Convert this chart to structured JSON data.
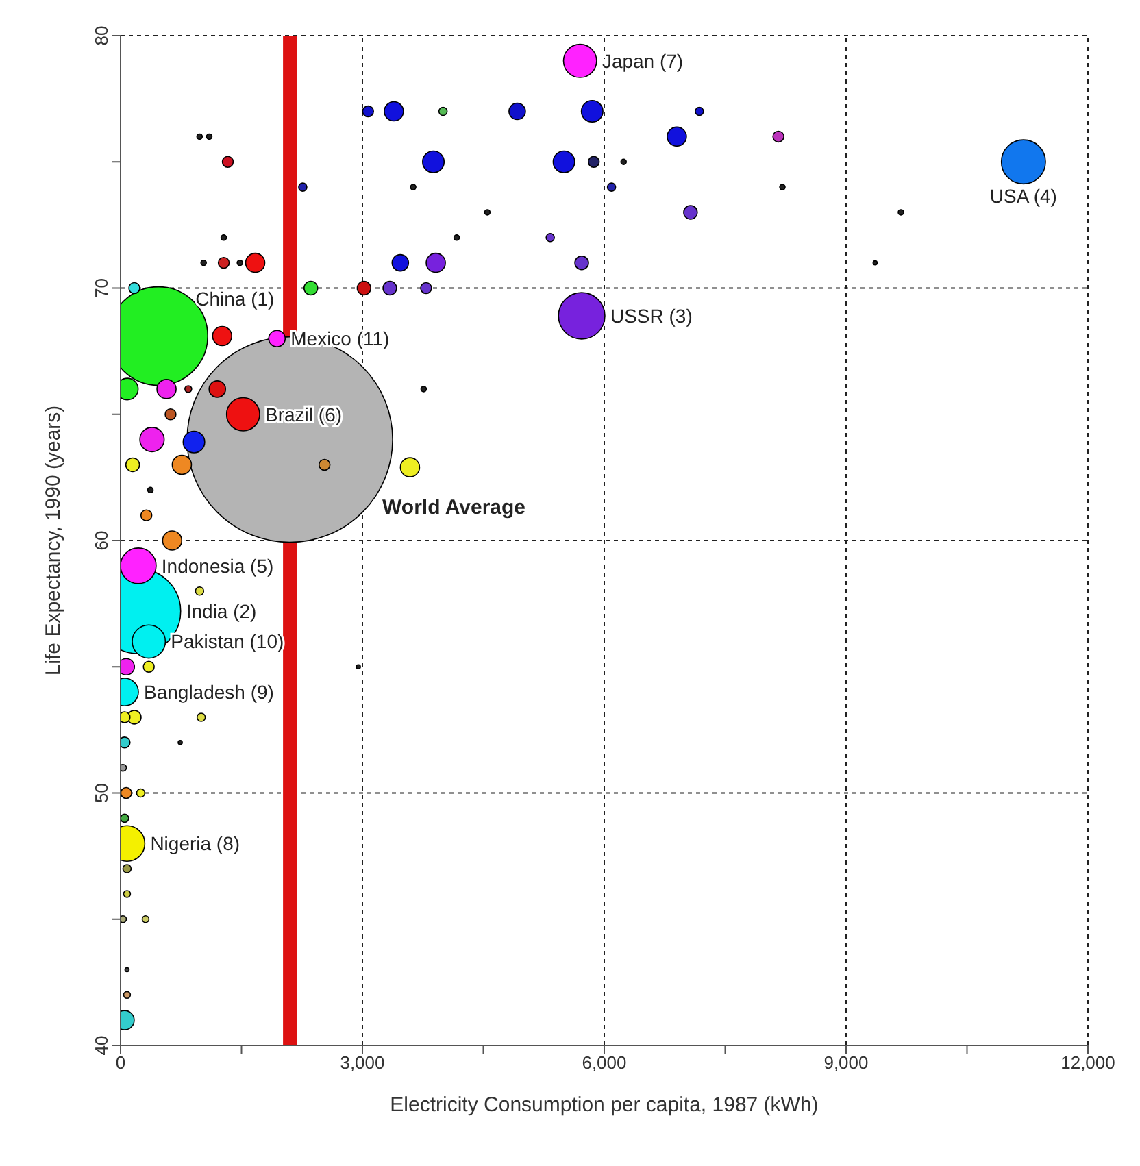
{
  "chart_data": {
    "type": "bubble",
    "xlabel": "Electricity Consumption per capita, 1987 (kWh)",
    "ylabel": "Life Expectancy, 1990  (years)",
    "xlim": [
      0,
      12000
    ],
    "ylim": [
      40,
      80
    ],
    "xticks": [
      {
        "value": 0,
        "label": "0"
      },
      {
        "value": 1500,
        "label": null
      },
      {
        "value": 3000,
        "label": "3,000"
      },
      {
        "value": 4500,
        "label": null
      },
      {
        "value": 6000,
        "label": "6,000"
      },
      {
        "value": 7500,
        "label": null
      },
      {
        "value": 9000,
        "label": "9,000"
      },
      {
        "value": 10500,
        "label": null
      },
      {
        "value": 12000,
        "label": "12,000"
      }
    ],
    "yticks": [
      40,
      {
        "value": 45,
        "label": null
      },
      50,
      {
        "value": 55,
        "label": null
      },
      60,
      {
        "value": 65,
        "label": null
      },
      70,
      {
        "value": 75,
        "label": null
      },
      80
    ],
    "grid": true,
    "marker": "circle",
    "ref_lines": [
      {
        "axis": "x",
        "value": 2100,
        "color": "#dd1111"
      }
    ],
    "x": [
      2100,
      470,
      220,
      11200,
      5720,
      5700,
      1520,
      220,
      350,
      50,
      80,
      1940,
      3070,
      3390,
      4000,
      4920,
      5850,
      7180,
      980,
      1100,
      1330,
      3880,
      5500,
      5870,
      6900,
      8160,
      6240,
      2260,
      3630,
      6090,
      8210,
      4550,
      7070,
      9680,
      1280,
      4170,
      5330,
      1030,
      1280,
      1480,
      1670,
      3470,
      3910,
      5720,
      9360,
      170,
      2360,
      3020,
      3340,
      3790,
      1260,
      84,
      570,
      840,
      1200,
      3760,
      620,
      390,
      910,
      150,
      760,
      2530,
      3590,
      370,
      320,
      640,
      980,
      70,
      350,
      2950,
      170,
      50,
      1000,
      50,
      740,
      30,
      70,
      250,
      50,
      80,
      80,
      30,
      310,
      80,
      80,
      50
    ],
    "values": [
      64,
      68.1,
      57.2,
      75,
      68.9,
      79,
      65,
      59,
      56,
      54,
      48,
      68,
      77,
      77,
      77,
      77,
      77,
      77,
      76,
      76,
      75,
      75,
      75,
      75,
      76,
      76,
      75,
      74,
      74,
      74,
      74,
      73,
      73,
      73,
      72,
      72,
      72,
      71,
      71,
      71,
      71,
      71,
      71,
      71,
      71,
      70,
      70,
      70,
      70,
      70,
      68.1,
      66,
      66,
      66,
      66,
      66,
      65,
      64,
      63.9,
      63,
      63,
      63,
      62.9,
      62,
      61,
      60,
      58,
      55,
      55,
      55,
      53,
      53,
      53,
      52,
      52,
      51,
      50,
      50,
      49,
      47,
      46,
      45,
      45,
      43,
      42,
      41
    ],
    "sizes": [
      1,
      0.23,
      0.17,
      0.046,
      0.051,
      0.026,
      0.026,
      0.03,
      0.026,
      0.018,
      0.03,
      0.0064,
      0.0028,
      0.0087,
      0.0016,
      0.0064,
      0.011,
      0.0016,
      0.0007,
      0.0007,
      0.0028,
      0.011,
      0.011,
      0.0028,
      0.0087,
      0.0028,
      0.0007,
      0.0016,
      0.0007,
      0.0016,
      0.0007,
      0.0007,
      0.0044,
      0.0007,
      0.0007,
      0.0007,
      0.0016,
      0.0007,
      0.0028,
      0.0007,
      0.0087,
      0.0064,
      0.0087,
      0.0044,
      0.0004,
      0.0028,
      0.0044,
      0.0044,
      0.0044,
      0.0028,
      0.0087,
      0.011,
      0.0087,
      0.0011,
      0.0064,
      0.0007,
      0.0028,
      0.014,
      0.011,
      0.0044,
      0.0087,
      0.0028,
      0.0087,
      0.0007,
      0.0028,
      0.0087,
      0.0016,
      0.0064,
      0.0028,
      0.0004,
      0.0044,
      0.0028,
      0.0016,
      0.0028,
      0.0004,
      0.0011,
      0.0028,
      0.0016,
      0.0016,
      0.0016,
      0.0011,
      0.0011,
      0.0011,
      0.0004,
      0.0011,
      0.0087
    ],
    "colors": [
      "#b4b4b4",
      "#22ee22",
      "#00f0f0",
      "#1177ee",
      "#7722dd",
      "#ff22ff",
      "#ee1111",
      "#ff22ff",
      "#00f0f0",
      "#00f0f0",
      "#f4f000",
      "#ff22ff",
      "#1111cc",
      "#1111dd",
      "#55bb55",
      "#1111cc",
      "#1111dd",
      "#1111cc",
      "#222222",
      "#222222",
      "#cc1122",
      "#1111dd",
      "#1111dd",
      "#222266",
      "#1111dd",
      "#bb33bb",
      "#222222",
      "#2222aa",
      "#222222",
      "#2222aa",
      "#222222",
      "#222222",
      "#6633cc",
      "#222222",
      "#222222",
      "#222222",
      "#6633cc",
      "#222222",
      "#cc2222",
      "#222222",
      "#ee1111",
      "#1111dd",
      "#7722dd",
      "#6633cc",
      "#222222",
      "#33dddd",
      "#33dd33",
      "#cc1111",
      "#6633cc",
      "#6633cc",
      "#ee1111",
      "#22ee22",
      "#ee22ee",
      "#aa2222",
      "#dd1111",
      "#222222",
      "#bb5522",
      "#ee22ee",
      "#1122ee",
      "#eeee22",
      "#ee8822",
      "#cc8833",
      "#eeee22",
      "#222222",
      "#ee8822",
      "#ee8822",
      "#dddd44",
      "#ee22ee",
      "#eeee22",
      "#222222",
      "#eeee22",
      "#eeee22",
      "#dddd44",
      "#33cccc",
      "#222222",
      "#999999",
      "#ee8822",
      "#eeee22",
      "#44aa44",
      "#999944",
      "#cccc44",
      "#aaaa77",
      "#cccc66",
      "#444444",
      "#cc9966",
      "#33cccc"
    ],
    "annotations": [
      {
        "text": "Japan (7)",
        "x": 5700,
        "y": 79
      },
      {
        "text": "USA (4)",
        "x": 11200,
        "y": 75
      },
      {
        "text": "USSR (3)",
        "x": 5720,
        "y": 68.9
      },
      {
        "text": "China (1)",
        "x": 470,
        "y": 68.1
      },
      {
        "text": "Mexico (11)",
        "x": 1940,
        "y": 68
      },
      {
        "text": "Brazil (6)",
        "x": 1520,
        "y": 65
      },
      "World Average",
      {
        "text": "Indonesia (5)",
        "x": 220,
        "y": 59
      },
      {
        "text": "India (2)",
        "x": 220,
        "y": 57.2
      },
      {
        "text": "Pakistan (10)",
        "x": 350,
        "y": 56
      },
      {
        "text": "Bangladesh (9)",
        "x": 50,
        "y": 54
      },
      {
        "text": "Nigeria (8)",
        "x": 80,
        "y": 48
      }
    ]
  }
}
